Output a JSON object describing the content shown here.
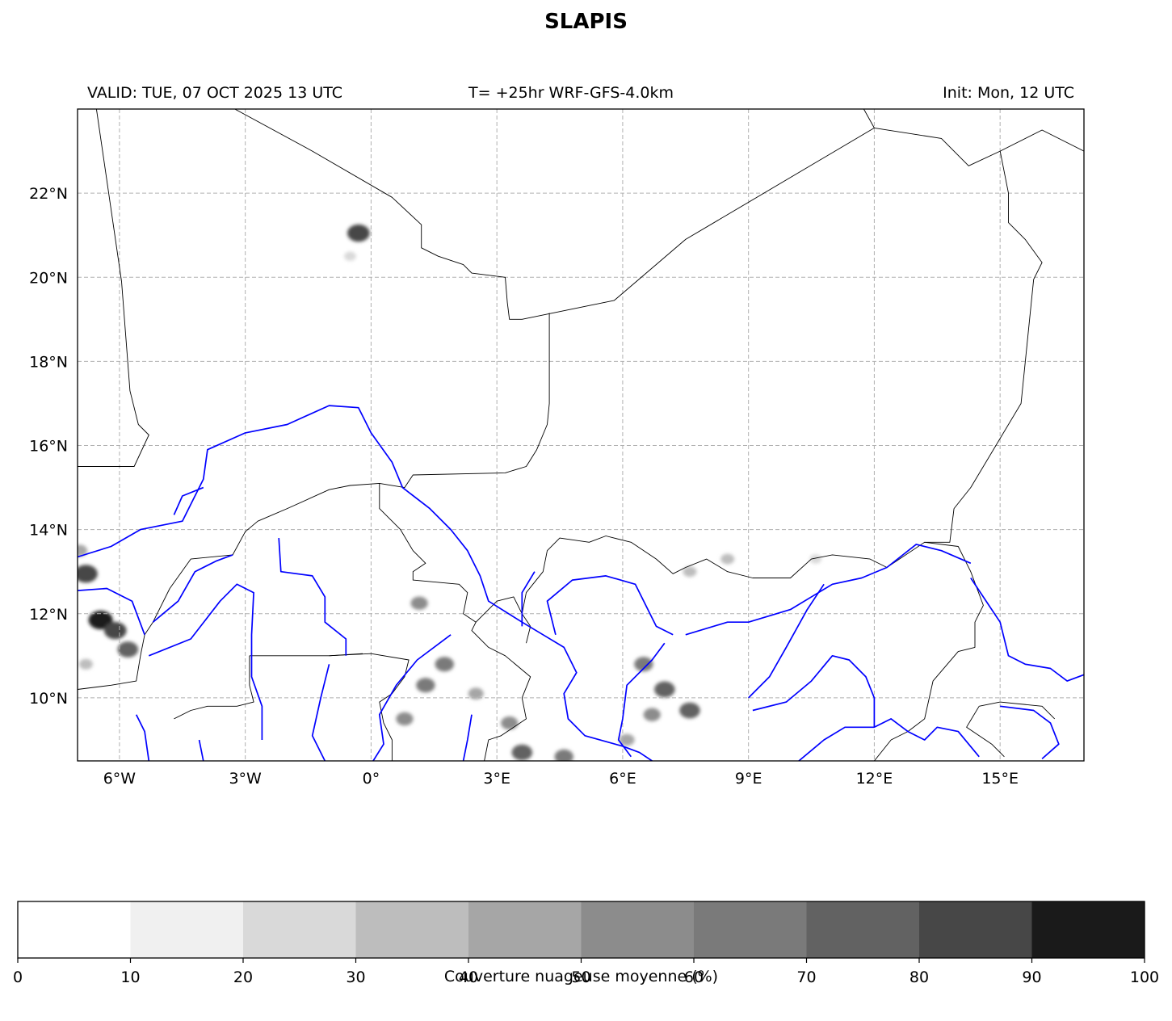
{
  "title": "SLAPIS",
  "header": {
    "valid": "VALID: TUE, 07 OCT 2025 13 UTC",
    "run": "T= +25hr WRF-GFS-4.0km",
    "init": "Init: Mon, 12 UTC"
  },
  "map": {
    "lon_range": [
      -7.0,
      17.0
    ],
    "lat_range": [
      8.5,
      24.0
    ],
    "grid": true,
    "lon_ticks": [
      {
        "value": -6,
        "label": "6°W"
      },
      {
        "value": -3,
        "label": "3°W"
      },
      {
        "value": 0,
        "label": "0°"
      },
      {
        "value": 3,
        "label": "3°E"
      },
      {
        "value": 6,
        "label": "6°E"
      },
      {
        "value": 9,
        "label": "9°E"
      },
      {
        "value": 12,
        "label": "12°E"
      },
      {
        "value": 15,
        "label": "15°E"
      }
    ],
    "lat_ticks": [
      {
        "value": 10,
        "label": "10°N"
      },
      {
        "value": 12,
        "label": "12°N"
      },
      {
        "value": 14,
        "label": "14°N"
      },
      {
        "value": 16,
        "label": "16°N"
      },
      {
        "value": 18,
        "label": "18°N"
      },
      {
        "value": 20,
        "label": "20°N"
      },
      {
        "value": 22,
        "label": "22°N"
      }
    ],
    "border_color": "#000000",
    "river_color": "#0000ff",
    "borders": [
      [
        [
          -6.55,
          24.0
        ],
        [
          -5.95,
          19.9
        ],
        [
          -5.75,
          17.3
        ],
        [
          -5.55,
          16.5
        ],
        [
          -5.3,
          16.25
        ],
        [
          -5.65,
          15.5
        ],
        [
          -7.0,
          15.5
        ]
      ],
      [
        [
          -3.25,
          24.0
        ],
        [
          -1.4,
          23.0
        ],
        [
          0.5,
          21.9
        ],
        [
          1.2,
          21.25
        ],
        [
          1.2,
          20.7
        ],
        [
          1.6,
          20.5
        ],
        [
          2.2,
          20.3
        ],
        [
          2.4,
          20.1
        ],
        [
          3.2,
          20.0
        ],
        [
          3.25,
          19.4
        ],
        [
          3.3,
          19.0
        ],
        [
          3.6,
          19.0
        ],
        [
          5.8,
          19.45
        ],
        [
          7.5,
          20.9
        ],
        [
          12.0,
          23.55
        ],
        [
          11.75,
          24.0
        ]
      ],
      [
        [
          12.0,
          23.55
        ],
        [
          13.6,
          23.3
        ],
        [
          14.25,
          22.65
        ],
        [
          15.0,
          23.0
        ],
        [
          16.0,
          23.5
        ],
        [
          17.0,
          23.0
        ]
      ],
      [
        [
          15.0,
          23.0
        ],
        [
          15.2,
          22.0
        ],
        [
          15.2,
          21.3
        ],
        [
          15.6,
          20.9
        ],
        [
          16.0,
          20.35
        ],
        [
          15.8,
          19.95
        ],
        [
          15.5,
          17.0
        ],
        [
          14.3,
          15.0
        ],
        [
          13.9,
          14.5
        ],
        [
          13.8,
          13.7
        ],
        [
          13.2,
          13.7
        ]
      ],
      [
        [
          4.25,
          19.15
        ],
        [
          4.25,
          17.0
        ],
        [
          4.2,
          16.5
        ],
        [
          3.95,
          15.9
        ],
        [
          3.7,
          15.5
        ],
        [
          3.2,
          15.35
        ],
        [
          1.0,
          15.3
        ],
        [
          0.8,
          15.0
        ],
        [
          0.2,
          15.1
        ],
        [
          -0.5,
          15.05
        ],
        [
          -1.0,
          14.95
        ],
        [
          -2.0,
          14.5
        ],
        [
          -2.7,
          14.2
        ],
        [
          -3.0,
          13.95
        ],
        [
          -3.3,
          13.4
        ],
        [
          -4.3,
          13.3
        ],
        [
          -4.8,
          12.6
        ],
        [
          -5.2,
          11.8
        ],
        [
          -5.4,
          11.5
        ],
        [
          -5.5,
          11.0
        ],
        [
          -5.6,
          10.4
        ],
        [
          -6.2,
          10.3
        ],
        [
          -7.0,
          10.2
        ]
      ],
      [
        [
          0.2,
          15.1
        ],
        [
          0.2,
          14.5
        ],
        [
          0.7,
          14.0
        ],
        [
          1.0,
          13.5
        ],
        [
          1.3,
          13.2
        ],
        [
          1.0,
          13.0
        ],
        [
          1.0,
          12.8
        ],
        [
          2.1,
          12.7
        ],
        [
          2.3,
          12.5
        ],
        [
          2.2,
          12.0
        ],
        [
          2.5,
          11.8
        ],
        [
          2.4,
          11.6
        ],
        [
          2.8,
          11.2
        ],
        [
          3.2,
          11.0
        ],
        [
          3.8,
          10.5
        ],
        [
          3.6,
          10.0
        ],
        [
          3.7,
          9.5
        ],
        [
          3.1,
          9.1
        ],
        [
          2.8,
          9.0
        ],
        [
          2.7,
          8.5
        ]
      ],
      [
        [
          2.5,
          11.8
        ],
        [
          3.0,
          12.3
        ],
        [
          3.4,
          12.4
        ],
        [
          3.6,
          12.0
        ],
        [
          3.8,
          11.7
        ],
        [
          3.7,
          11.3
        ]
      ],
      [
        [
          3.6,
          12.0
        ],
        [
          3.7,
          12.5
        ],
        [
          4.1,
          13.0
        ],
        [
          4.2,
          13.5
        ],
        [
          4.5,
          13.8
        ],
        [
          5.2,
          13.7
        ],
        [
          5.6,
          13.85
        ],
        [
          6.2,
          13.7
        ],
        [
          6.8,
          13.3
        ],
        [
          7.2,
          12.95
        ],
        [
          7.5,
          13.1
        ],
        [
          8.0,
          13.3
        ],
        [
          8.5,
          13.0
        ],
        [
          9.1,
          12.85
        ],
        [
          10.0,
          12.85
        ],
        [
          10.5,
          13.3
        ],
        [
          11.0,
          13.4
        ],
        [
          11.9,
          13.3
        ],
        [
          12.3,
          13.1
        ],
        [
          13.2,
          13.7
        ],
        [
          14.0,
          13.6
        ],
        [
          14.3,
          13.0
        ],
        [
          14.6,
          12.2
        ],
        [
          14.4,
          11.8
        ],
        [
          14.4,
          11.2
        ],
        [
          14.0,
          11.1
        ],
        [
          13.4,
          10.4
        ],
        [
          13.2,
          9.5
        ],
        [
          12.8,
          9.2
        ],
        [
          12.4,
          9.0
        ],
        [
          12.0,
          8.5
        ]
      ],
      [
        [
          -1.0,
          11.0
        ],
        [
          0.0,
          11.05
        ],
        [
          0.9,
          10.9
        ],
        [
          0.8,
          10.5
        ],
        [
          0.5,
          10.1
        ],
        [
          0.2,
          9.9
        ],
        [
          0.3,
          9.4
        ],
        [
          0.5,
          9.0
        ],
        [
          0.5,
          8.5
        ]
      ],
      [
        [
          -2.9,
          11.0
        ],
        [
          -2.9,
          10.3
        ],
        [
          -2.8,
          9.9
        ],
        [
          -3.2,
          9.8
        ],
        [
          -3.9,
          9.8
        ],
        [
          -4.3,
          9.7
        ],
        [
          -4.7,
          9.5
        ]
      ],
      [
        [
          -2.9,
          11.0
        ],
        [
          -1.0,
          11.0
        ],
        [
          -0.2,
          11.05
        ]
      ],
      [
        [
          14.5,
          9.8
        ],
        [
          15.0,
          9.9
        ],
        [
          16.0,
          9.8
        ],
        [
          16.3,
          9.5
        ]
      ],
      [
        [
          14.5,
          9.8
        ],
        [
          14.2,
          9.3
        ],
        [
          14.8,
          8.9
        ],
        [
          15.1,
          8.6
        ]
      ]
    ],
    "rivers": [
      [
        [
          -7.0,
          13.35
        ],
        [
          -6.2,
          13.6
        ],
        [
          -5.5,
          14.0
        ],
        [
          -4.5,
          14.2
        ],
        [
          -4.3,
          14.6
        ],
        [
          -4.0,
          15.2
        ],
        [
          -3.9,
          15.9
        ],
        [
          -3.0,
          16.3
        ],
        [
          -2.0,
          16.5
        ],
        [
          -1.0,
          16.95
        ],
        [
          -0.3,
          16.9
        ],
        [
          0.0,
          16.3
        ],
        [
          0.5,
          15.6
        ],
        [
          0.75,
          15.0
        ],
        [
          1.4,
          14.5
        ],
        [
          1.9,
          14.0
        ],
        [
          2.3,
          13.5
        ],
        [
          2.6,
          12.9
        ],
        [
          2.8,
          12.3
        ],
        [
          3.6,
          11.8
        ],
        [
          4.1,
          11.5
        ],
        [
          4.6,
          11.2
        ],
        [
          4.9,
          10.6
        ],
        [
          4.6,
          10.1
        ],
        [
          4.7,
          9.5
        ],
        [
          5.1,
          9.1
        ],
        [
          6.0,
          8.85
        ],
        [
          6.4,
          8.7
        ],
        [
          6.7,
          8.5
        ]
      ],
      [
        [
          -7.0,
          12.55
        ],
        [
          -6.3,
          12.6
        ],
        [
          -5.7,
          12.3
        ],
        [
          -5.4,
          11.5
        ]
      ],
      [
        [
          -5.2,
          11.8
        ],
        [
          -4.6,
          12.3
        ],
        [
          -4.2,
          13.0
        ],
        [
          -3.7,
          13.25
        ],
        [
          -3.3,
          13.4
        ]
      ],
      [
        [
          -4.0,
          15.0
        ],
        [
          -4.5,
          14.8
        ],
        [
          -4.7,
          14.35
        ]
      ],
      [
        [
          -5.3,
          11.0
        ],
        [
          -4.3,
          11.4
        ],
        [
          -3.6,
          12.3
        ],
        [
          -3.2,
          12.7
        ],
        [
          -2.8,
          12.5
        ],
        [
          -2.85,
          11.5
        ],
        [
          -2.85,
          10.5
        ],
        [
          -2.6,
          9.8
        ],
        [
          -2.6,
          9.0
        ]
      ],
      [
        [
          -2.2,
          13.8
        ],
        [
          -2.15,
          13.0
        ],
        [
          -1.4,
          12.9
        ],
        [
          -1.1,
          12.4
        ],
        [
          -1.1,
          11.8
        ],
        [
          -0.6,
          11.4
        ],
        [
          -0.6,
          11.0
        ]
      ],
      [
        [
          -5.6,
          9.6
        ],
        [
          -5.4,
          9.2
        ],
        [
          -5.3,
          8.5
        ]
      ],
      [
        [
          -4.1,
          9.0
        ],
        [
          -4.0,
          8.5
        ]
      ],
      [
        [
          -1.0,
          10.8
        ],
        [
          -1.2,
          10.0
        ],
        [
          -1.4,
          9.1
        ],
        [
          -1.1,
          8.5
        ]
      ],
      [
        [
          1.9,
          11.5
        ],
        [
          1.1,
          10.9
        ],
        [
          0.6,
          10.3
        ],
        [
          0.2,
          9.6
        ],
        [
          0.3,
          8.9
        ],
        [
          0.05,
          8.5
        ]
      ],
      [
        [
          2.4,
          9.6
        ],
        [
          2.3,
          9.0
        ],
        [
          2.2,
          8.5
        ]
      ],
      [
        [
          3.9,
          13.0
        ],
        [
          3.6,
          12.5
        ],
        [
          3.6,
          11.7
        ]
      ],
      [
        [
          4.4,
          11.5
        ],
        [
          4.2,
          12.3
        ],
        [
          4.8,
          12.8
        ],
        [
          5.6,
          12.9
        ],
        [
          6.3,
          12.7
        ],
        [
          6.8,
          11.7
        ],
        [
          7.2,
          11.5
        ]
      ],
      [
        [
          7.0,
          11.3
        ],
        [
          6.7,
          10.9
        ],
        [
          6.1,
          10.3
        ],
        [
          6.0,
          9.5
        ],
        [
          5.9,
          9.0
        ],
        [
          6.2,
          8.6
        ]
      ],
      [
        [
          7.5,
          11.5
        ],
        [
          8.5,
          11.8
        ],
        [
          9.0,
          11.8
        ],
        [
          10.0,
          12.1
        ],
        [
          11.0,
          12.7
        ],
        [
          11.7,
          12.85
        ],
        [
          12.3,
          13.1
        ],
        [
          13.0,
          13.65
        ],
        [
          13.6,
          13.5
        ],
        [
          14.3,
          13.2
        ]
      ],
      [
        [
          10.8,
          12.7
        ],
        [
          10.4,
          12.1
        ],
        [
          9.9,
          11.2
        ],
        [
          9.5,
          10.5
        ],
        [
          9.0,
          10.0
        ]
      ],
      [
        [
          9.1,
          9.7
        ],
        [
          9.9,
          9.9
        ],
        [
          10.5,
          10.4
        ],
        [
          11.0,
          11.0
        ],
        [
          11.4,
          10.9
        ],
        [
          11.8,
          10.5
        ],
        [
          12.0,
          10.0
        ],
        [
          12.0,
          9.3
        ]
      ],
      [
        [
          10.2,
          8.5
        ],
        [
          10.8,
          9.0
        ],
        [
          11.3,
          9.3
        ],
        [
          12.0,
          9.3
        ],
        [
          12.4,
          9.5
        ],
        [
          12.8,
          9.2
        ],
        [
          13.2,
          9.0
        ],
        [
          13.5,
          9.3
        ],
        [
          14.0,
          9.2
        ],
        [
          14.5,
          8.6
        ]
      ],
      [
        [
          14.3,
          12.85
        ],
        [
          14.8,
          12.1
        ],
        [
          15.0,
          11.8
        ],
        [
          15.2,
          11.0
        ],
        [
          15.6,
          10.8
        ],
        [
          16.2,
          10.7
        ],
        [
          16.6,
          10.4
        ],
        [
          17.0,
          10.55
        ]
      ],
      [
        [
          15.0,
          9.8
        ],
        [
          15.8,
          9.7
        ],
        [
          16.2,
          9.4
        ],
        [
          16.4,
          8.9
        ],
        [
          16.0,
          8.55
        ]
      ]
    ]
  },
  "cloud_clusters": [
    {
      "lon": -6.8,
      "lat": 12.95,
      "level": 85
    },
    {
      "lon": -6.45,
      "lat": 11.85,
      "level": 90
    },
    {
      "lon": -6.1,
      "lat": 11.6,
      "level": 80
    },
    {
      "lon": -5.8,
      "lat": 11.15,
      "level": 70
    },
    {
      "lon": -6.95,
      "lat": 13.5,
      "level": 40
    },
    {
      "lon": -6.8,
      "lat": 10.8,
      "level": 30
    },
    {
      "lon": -0.3,
      "lat": 21.05,
      "level": 80
    },
    {
      "lon": -0.5,
      "lat": 20.5,
      "level": 20
    },
    {
      "lon": 1.15,
      "lat": 12.25,
      "level": 50
    },
    {
      "lon": 1.75,
      "lat": 10.8,
      "level": 60
    },
    {
      "lon": 1.3,
      "lat": 10.3,
      "level": 60
    },
    {
      "lon": 0.8,
      "lat": 9.5,
      "level": 50
    },
    {
      "lon": 2.5,
      "lat": 10.1,
      "level": 40
    },
    {
      "lon": 3.3,
      "lat": 9.4,
      "level": 50
    },
    {
      "lon": 3.6,
      "lat": 8.7,
      "level": 70
    },
    {
      "lon": 4.6,
      "lat": 8.6,
      "level": 60
    },
    {
      "lon": 6.5,
      "lat": 10.8,
      "level": 60
    },
    {
      "lon": 7.0,
      "lat": 10.2,
      "level": 70
    },
    {
      "lon": 7.6,
      "lat": 9.7,
      "level": 70
    },
    {
      "lon": 6.7,
      "lat": 9.6,
      "level": 50
    },
    {
      "lon": 6.1,
      "lat": 9.0,
      "level": 40
    },
    {
      "lon": 7.6,
      "lat": 13.0,
      "level": 30
    },
    {
      "lon": 8.5,
      "lat": 13.3,
      "level": 30
    },
    {
      "lon": 10.6,
      "lat": 13.3,
      "level": 20
    }
  ],
  "colorbar": {
    "label": "Couverture nuageuse moyenne (%)",
    "ticks": [
      "0",
      "10",
      "20",
      "30",
      "40",
      "50",
      "60",
      "70",
      "80",
      "90",
      "100"
    ],
    "colors": [
      "#ffffff",
      "#f0f0f0",
      "#d9d9d9",
      "#bdbdbd",
      "#a6a6a6",
      "#8c8c8c",
      "#7a7a7a",
      "#626262",
      "#474747",
      "#1a1a1a"
    ]
  }
}
